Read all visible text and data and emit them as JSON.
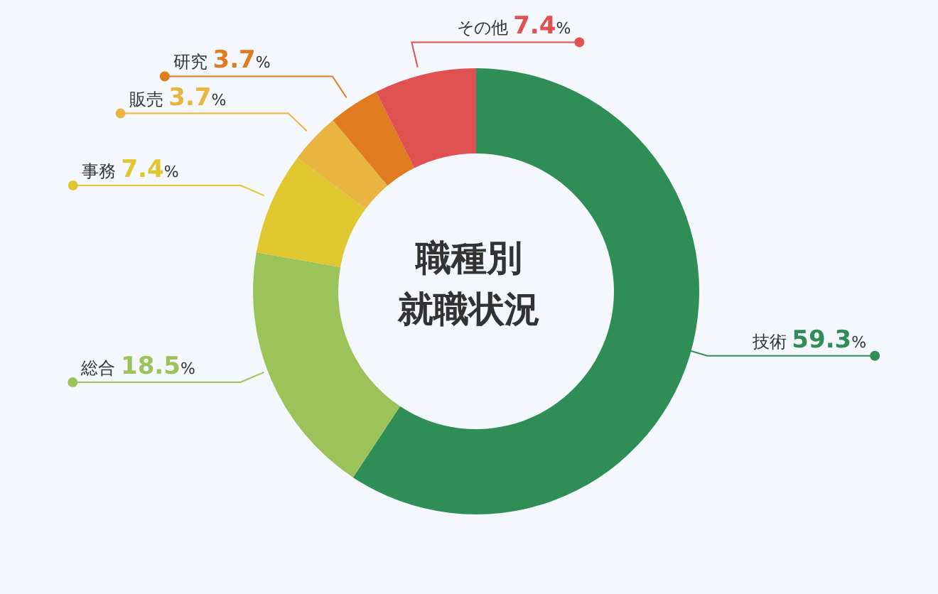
{
  "chart_data": {
    "type": "donut",
    "title": "職種別",
    "subtitle": "就職状況",
    "categories": [
      "技術",
      "総合",
      "事務",
      "販売",
      "研究",
      "その他"
    ],
    "values": [
      59.3,
      18.5,
      7.4,
      3.7,
      3.7,
      7.4
    ],
    "colors": [
      "#2e8e55",
      "#9bc35a",
      "#e0c72f",
      "#e9b43f",
      "#e07b1f",
      "#e05152"
    ],
    "value_labels": [
      "59.3%",
      "18.5%",
      "7.4%",
      "3.7%",
      "3.7%",
      "7.4%"
    ],
    "legend": false
  }
}
